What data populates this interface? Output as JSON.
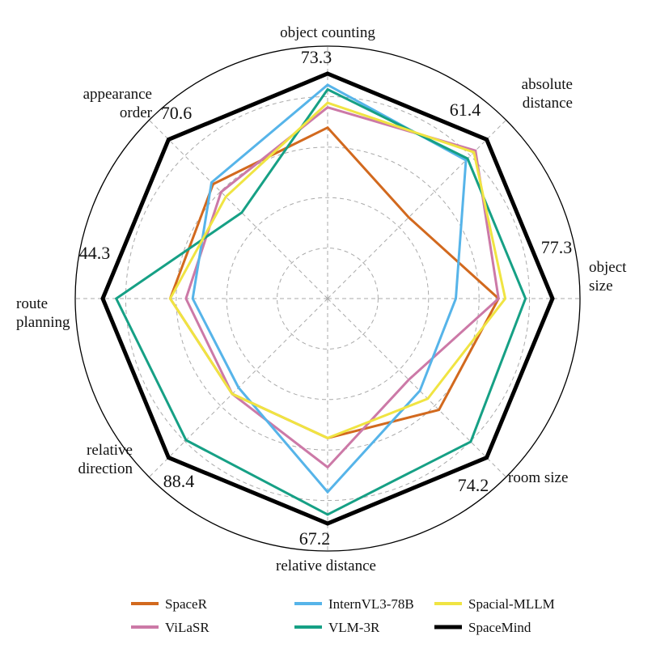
{
  "chart_data": {
    "type": "radar",
    "axes": [
      {
        "key": "object_counting",
        "label_lines": [
          "object counting"
        ],
        "best_value": "73.3"
      },
      {
        "key": "absolute_distance",
        "label_lines": [
          "absolute",
          "distance"
        ],
        "best_value": "61.4"
      },
      {
        "key": "object_size",
        "label_lines": [
          "object",
          "size"
        ],
        "best_value": "77.3"
      },
      {
        "key": "room_size",
        "label_lines": [
          "room size"
        ],
        "best_value": "74.2"
      },
      {
        "key": "relative_distance",
        "label_lines": [
          "relative distance"
        ],
        "best_value": "67.2"
      },
      {
        "key": "relative_direction",
        "label_lines": [
          "relative",
          "direction"
        ],
        "best_value": "88.4"
      },
      {
        "key": "route_planning",
        "label_lines": [
          "route",
          "planning"
        ],
        "best_value": "44.3"
      },
      {
        "key": "appearance_order",
        "label_lines": [
          "appearance",
          "order"
        ],
        "best_value": "70.6"
      }
    ],
    "scale": "normalized per axis, SpaceMind = 1.0",
    "grid": true,
    "legend_position": "bottom",
    "series": [
      {
        "name": "SpaceR",
        "color": "#D2691E",
        "values": [
          0.76,
          0.51,
          0.76,
          0.7,
          0.62,
          0.6,
          0.7,
          0.72
        ]
      },
      {
        "name": "ViLaSR",
        "color": "#CC79A7",
        "values": [
          0.85,
          0.93,
          0.76,
          0.51,
          0.75,
          0.6,
          0.63,
          0.67
        ]
      },
      {
        "name": "InternVL3-78B",
        "color": "#56B4E9",
        "values": [
          0.95,
          0.87,
          0.57,
          0.58,
          0.86,
          0.56,
          0.6,
          0.73
        ]
      },
      {
        "name": "VLM-3R",
        "color": "#16A085",
        "values": [
          0.93,
          0.88,
          0.88,
          0.9,
          0.96,
          0.89,
          0.94,
          0.54
        ]
      },
      {
        "name": "Spacial-MLLM",
        "color": "#F0E442",
        "values": [
          0.87,
          0.92,
          0.79,
          0.63,
          0.62,
          0.6,
          0.7,
          0.64
        ]
      },
      {
        "name": "SpaceMind",
        "color": "#000000",
        "values": [
          1.0,
          1.0,
          1.0,
          1.0,
          1.0,
          1.0,
          1.0,
          1.0
        ]
      }
    ]
  }
}
